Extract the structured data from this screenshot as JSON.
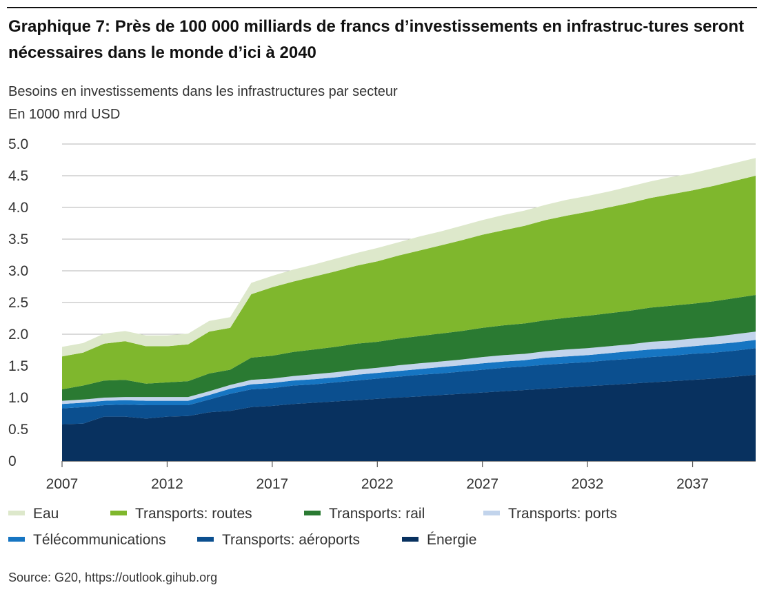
{
  "title": "Graphique 7: Près de 100 000 milliards de francs d’investissements en infrastruc-tures seront nécessaires dans le monde d’ici à 2040",
  "subtitle": "Besoins en investissements dans les infrastructures par secteur",
  "unit": "En 1000 mrd USD",
  "source": "Source: G20, https://outlook.gihub.org",
  "chart_data": {
    "type": "area",
    "stacked": true,
    "x": [
      2007,
      2008,
      2009,
      2010,
      2011,
      2012,
      2013,
      2014,
      2015,
      2016,
      2017,
      2018,
      2019,
      2020,
      2021,
      2022,
      2023,
      2024,
      2025,
      2026,
      2027,
      2028,
      2029,
      2030,
      2031,
      2032,
      2033,
      2034,
      2035,
      2036,
      2037,
      2038,
      2039,
      2040
    ],
    "x_ticks": [
      "2007",
      "2012",
      "2017",
      "2022",
      "2027",
      "2032",
      "2037"
    ],
    "y_ticks": [
      "0",
      "0.5",
      "1.0",
      "1.5",
      "2.0",
      "2.5",
      "3.0",
      "3.5",
      "4.0",
      "4.5",
      "5.0"
    ],
    "ylim": [
      0,
      5.0
    ],
    "xlim": [
      2007,
      2040
    ],
    "grid": "horizontal",
    "legend_position": "bottom",
    "series": [
      {
        "name": "Énergie",
        "color": "#08315f",
        "values": [
          0.58,
          0.59,
          0.7,
          0.7,
          0.67,
          0.7,
          0.71,
          0.77,
          0.79,
          0.85,
          0.87,
          0.9,
          0.92,
          0.94,
          0.96,
          0.98,
          1.0,
          1.02,
          1.04,
          1.06,
          1.08,
          1.1,
          1.12,
          1.14,
          1.16,
          1.18,
          1.2,
          1.22,
          1.24,
          1.26,
          1.28,
          1.3,
          1.33,
          1.36
        ]
      },
      {
        "name": "Transports: aéroports",
        "color": "#0b4f8f",
        "values": [
          0.25,
          0.26,
          0.18,
          0.19,
          0.21,
          0.18,
          0.17,
          0.2,
          0.27,
          0.28,
          0.28,
          0.29,
          0.29,
          0.3,
          0.31,
          0.32,
          0.33,
          0.34,
          0.34,
          0.35,
          0.36,
          0.37,
          0.37,
          0.38,
          0.38,
          0.38,
          0.39,
          0.39,
          0.4,
          0.4,
          0.41,
          0.41,
          0.41,
          0.42
        ]
      },
      {
        "name": "Télécommunications",
        "color": "#1675c2",
        "values": [
          0.07,
          0.07,
          0.07,
          0.07,
          0.07,
          0.07,
          0.07,
          0.07,
          0.08,
          0.08,
          0.08,
          0.08,
          0.08,
          0.08,
          0.09,
          0.09,
          0.09,
          0.09,
          0.1,
          0.1,
          0.1,
          0.1,
          0.1,
          0.11,
          0.11,
          0.11,
          0.11,
          0.12,
          0.12,
          0.12,
          0.12,
          0.13,
          0.13,
          0.13
        ]
      },
      {
        "name": "Transports: ports",
        "color": "#c2d4ec",
        "values": [
          0.05,
          0.05,
          0.05,
          0.05,
          0.06,
          0.06,
          0.06,
          0.06,
          0.06,
          0.07,
          0.07,
          0.07,
          0.08,
          0.08,
          0.08,
          0.08,
          0.09,
          0.09,
          0.09,
          0.09,
          0.1,
          0.1,
          0.1,
          0.1,
          0.11,
          0.11,
          0.11,
          0.11,
          0.12,
          0.12,
          0.12,
          0.12,
          0.13,
          0.13
        ]
      },
      {
        "name": "Transports: rail",
        "color": "#2a7a32",
        "values": [
          0.18,
          0.22,
          0.27,
          0.27,
          0.21,
          0.23,
          0.25,
          0.28,
          0.24,
          0.35,
          0.36,
          0.38,
          0.39,
          0.4,
          0.41,
          0.41,
          0.42,
          0.43,
          0.44,
          0.45,
          0.46,
          0.47,
          0.48,
          0.49,
          0.5,
          0.51,
          0.52,
          0.53,
          0.54,
          0.55,
          0.55,
          0.56,
          0.57,
          0.58
        ]
      },
      {
        "name": "Transports: routes",
        "color": "#7fb72d",
        "values": [
          0.52,
          0.52,
          0.58,
          0.61,
          0.59,
          0.57,
          0.58,
          0.66,
          0.66,
          1.0,
          1.08,
          1.11,
          1.15,
          1.19,
          1.23,
          1.27,
          1.31,
          1.35,
          1.39,
          1.43,
          1.47,
          1.5,
          1.54,
          1.58,
          1.61,
          1.64,
          1.67,
          1.7,
          1.73,
          1.76,
          1.79,
          1.82,
          1.85,
          1.88
        ]
      },
      {
        "name": "Eau",
        "color": "#dde8cb",
        "values": [
          0.15,
          0.15,
          0.16,
          0.16,
          0.17,
          0.17,
          0.17,
          0.17,
          0.17,
          0.18,
          0.18,
          0.19,
          0.19,
          0.2,
          0.2,
          0.21,
          0.21,
          0.22,
          0.22,
          0.23,
          0.23,
          0.24,
          0.24,
          0.24,
          0.25,
          0.25,
          0.25,
          0.26,
          0.26,
          0.27,
          0.27,
          0.28,
          0.28,
          0.28
        ]
      }
    ],
    "legend": [
      {
        "label": "Eau",
        "color": "#dde8cb"
      },
      {
        "label": "Transports: routes",
        "color": "#7fb72d"
      },
      {
        "label": "Transports: rail",
        "color": "#2a7a32"
      },
      {
        "label": "Transports: ports",
        "color": "#c2d4ec"
      },
      {
        "label": "Télécommunications",
        "color": "#1675c2"
      },
      {
        "label": "Transports: aéroports",
        "color": "#0b4f8f"
      },
      {
        "label": "Énergie",
        "color": "#08315f"
      }
    ]
  }
}
